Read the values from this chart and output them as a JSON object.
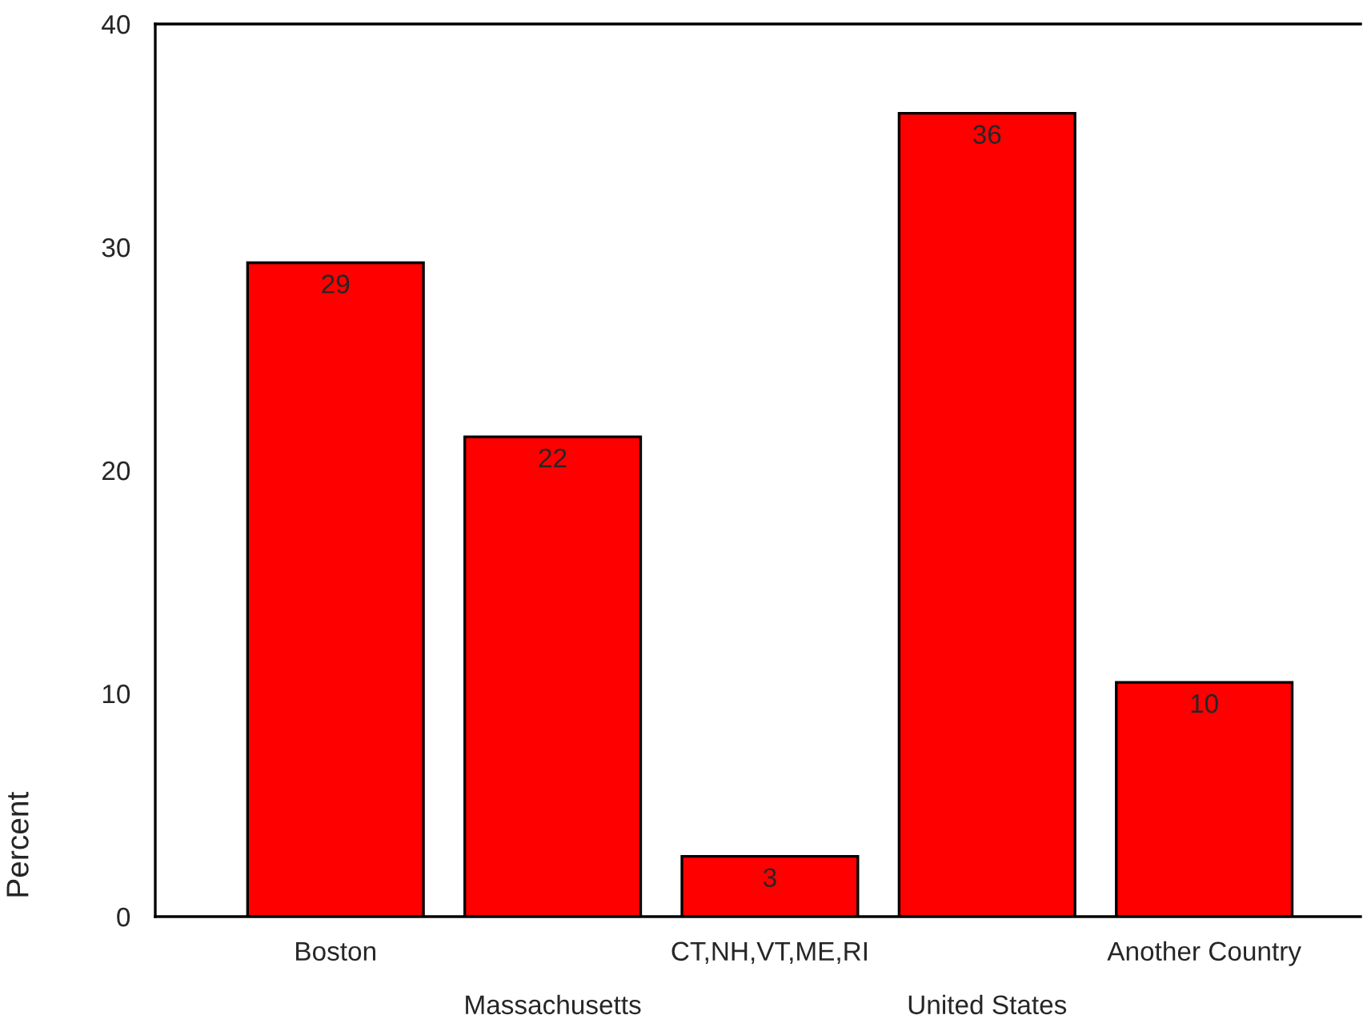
{
  "chart_data": {
    "type": "bar",
    "ylabel": "Percent",
    "categories": [
      "Boston",
      "Massachusetts",
      "CT,NH,VT,ME,RI",
      "United States",
      "Another Country"
    ],
    "values": [
      29.3,
      21.5,
      2.7,
      36.0,
      10.5
    ],
    "value_labels": [
      "29",
      "22",
      "3",
      "36",
      "10"
    ],
    "color": "#ff0000",
    "ylim": [
      0,
      40
    ],
    "yticks": [
      0,
      10,
      20,
      30,
      40
    ],
    "grid": false,
    "legend": false
  }
}
